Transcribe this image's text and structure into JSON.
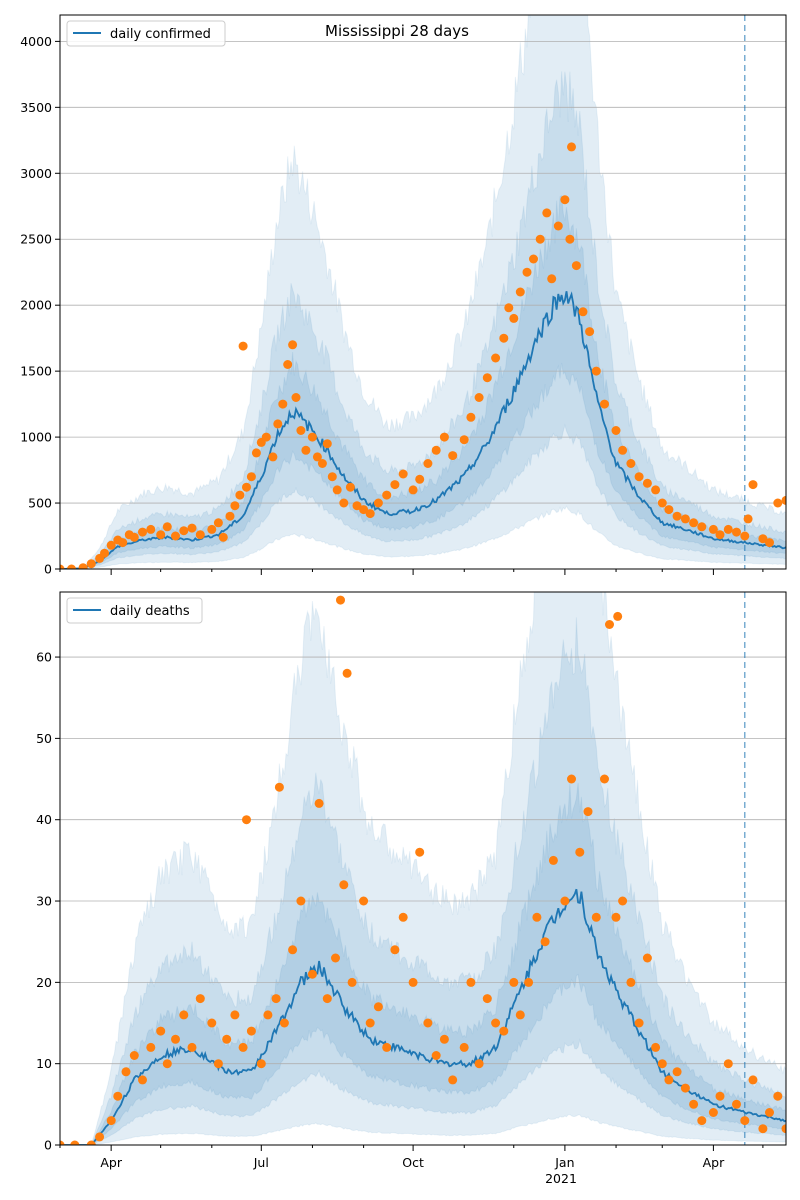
{
  "chart_data": [
    {
      "id": "confirmed",
      "type": "line",
      "title": "Mississippi 28 days",
      "legend": [
        "daily confirmed"
      ],
      "legend_position": "top-left",
      "grid_y": true,
      "x_range": [
        "2020-03-01",
        "2021-05-15"
      ],
      "x_ticks_major": [
        "Apr",
        "Jul",
        "Oct",
        "Jan",
        "Apr"
      ],
      "x_ticks_major_dates": [
        "2020-04-01",
        "2020-07-01",
        "2020-10-01",
        "2021-01-01",
        "2021-04-01"
      ],
      "x_year_label": "2021",
      "ylim": [
        0,
        4200
      ],
      "y_ticks": [
        0,
        500,
        1000,
        1500,
        2000,
        2500,
        3000,
        3500,
        4000
      ],
      "forecast_start": "2021-04-20",
      "median_knots": {
        "dates": [
          "2020-03-01",
          "2020-03-15",
          "2020-03-25",
          "2020-04-05",
          "2020-04-20",
          "2020-05-05",
          "2020-05-20",
          "2020-06-05",
          "2020-06-20",
          "2020-07-01",
          "2020-07-10",
          "2020-07-20",
          "2020-08-01",
          "2020-08-10",
          "2020-08-20",
          "2020-09-01",
          "2020-09-15",
          "2020-10-01",
          "2020-10-15",
          "2020-11-01",
          "2020-11-15",
          "2020-12-01",
          "2020-12-15",
          "2020-12-25",
          "2021-01-01",
          "2021-01-10",
          "2021-01-20",
          "2021-02-01",
          "2021-02-15",
          "2021-03-01",
          "2021-03-15",
          "2021-04-01",
          "2021-04-20",
          "2021-05-15"
        ],
        "values": [
          0,
          5,
          60,
          170,
          220,
          240,
          220,
          260,
          400,
          700,
          1000,
          1200,
          1050,
          900,
          700,
          520,
          420,
          440,
          520,
          700,
          950,
          1350,
          1750,
          2000,
          2100,
          1900,
          1300,
          800,
          550,
          350,
          300,
          230,
          200,
          160
        ]
      },
      "band_scale": {
        "inner_low": 0.72,
        "inner_high": 1.3,
        "mid_low": 0.5,
        "mid_high": 1.75,
        "outer_low": 0.22,
        "outer_high": 2.6
      },
      "observed": {
        "dates": [
          "2020-03-01",
          "2020-03-08",
          "2020-03-15",
          "2020-03-20",
          "2020-03-25",
          "2020-03-28",
          "2020-04-01",
          "2020-04-05",
          "2020-04-08",
          "2020-04-12",
          "2020-04-15",
          "2020-04-20",
          "2020-04-25",
          "2020-05-01",
          "2020-05-05",
          "2020-05-10",
          "2020-05-15",
          "2020-05-20",
          "2020-05-25",
          "2020-06-01",
          "2020-06-05",
          "2020-06-08",
          "2020-06-12",
          "2020-06-15",
          "2020-06-18",
          "2020-06-22",
          "2020-06-25",
          "2020-06-28",
          "2020-07-01",
          "2020-07-04",
          "2020-07-08",
          "2020-07-11",
          "2020-07-14",
          "2020-07-17",
          "2020-07-20",
          "2020-07-22",
          "2020-07-25",
          "2020-07-28",
          "2020-08-01",
          "2020-08-04",
          "2020-08-07",
          "2020-08-10",
          "2020-08-13",
          "2020-08-16",
          "2020-08-20",
          "2020-08-24",
          "2020-08-28",
          "2020-09-01",
          "2020-09-05",
          "2020-09-10",
          "2020-09-15",
          "2020-09-20",
          "2020-09-25",
          "2020-10-01",
          "2020-10-05",
          "2020-10-10",
          "2020-10-15",
          "2020-10-20",
          "2020-10-25",
          "2020-11-01",
          "2020-11-05",
          "2020-11-10",
          "2020-11-15",
          "2020-11-20",
          "2020-11-25",
          "2020-12-01",
          "2020-12-05",
          "2020-12-09",
          "2020-12-13",
          "2020-12-17",
          "2020-12-21",
          "2020-12-24",
          "2020-12-28",
          "2021-01-01",
          "2021-01-04",
          "2021-01-08",
          "2021-01-12",
          "2021-01-16",
          "2021-01-20",
          "2021-01-25",
          "2021-02-01",
          "2021-02-05",
          "2021-02-10",
          "2021-02-15",
          "2021-02-20",
          "2021-02-25",
          "2021-03-01",
          "2021-03-05",
          "2021-03-10",
          "2021-03-15",
          "2021-03-20",
          "2021-03-25",
          "2021-04-01",
          "2021-04-05",
          "2021-04-10",
          "2021-04-15",
          "2021-04-20",
          "2021-04-25",
          "2021-05-01",
          "2021-05-05",
          "2021-05-10",
          "2021-05-15",
          "2020-06-20",
          "2020-11-28",
          "2021-01-05",
          "2021-04-22"
        ],
        "values": [
          0,
          0,
          10,
          40,
          80,
          120,
          180,
          220,
          200,
          260,
          240,
          280,
          300,
          260,
          320,
          250,
          290,
          310,
          260,
          300,
          350,
          240,
          400,
          480,
          560,
          620,
          700,
          880,
          960,
          1000,
          850,
          1100,
          1250,
          1550,
          1700,
          1300,
          1050,
          900,
          1000,
          850,
          800,
          950,
          700,
          600,
          500,
          620,
          480,
          450,
          420,
          500,
          560,
          640,
          720,
          600,
          680,
          800,
          900,
          1000,
          860,
          980,
          1150,
          1300,
          1450,
          1600,
          1750,
          1900,
          2100,
          2250,
          2350,
          2500,
          2700,
          2200,
          2600,
          2800,
          2500,
          2300,
          1950,
          1800,
          1500,
          1250,
          1050,
          900,
          800,
          700,
          650,
          600,
          500,
          450,
          400,
          380,
          350,
          320,
          300,
          260,
          300,
          280,
          250,
          640,
          230,
          200,
          500,
          520,
          1690,
          1980,
          3200,
          380
        ]
      }
    },
    {
      "id": "deaths",
      "type": "line",
      "legend": [
        "daily deaths"
      ],
      "legend_position": "top-left",
      "grid_y": true,
      "x_range": [
        "2020-03-01",
        "2021-05-15"
      ],
      "x_ticks_major": [
        "Apr",
        "Jul",
        "Oct",
        "Jan",
        "Apr"
      ],
      "x_ticks_major_dates": [
        "2020-04-01",
        "2020-07-01",
        "2020-10-01",
        "2021-01-01",
        "2021-04-01"
      ],
      "x_year_label": "2021",
      "ylim": [
        0,
        68
      ],
      "y_ticks": [
        0,
        10,
        20,
        30,
        40,
        50,
        60
      ],
      "forecast_start": "2021-04-20",
      "median_knots": {
        "dates": [
          "2020-03-01",
          "2020-03-20",
          "2020-04-01",
          "2020-04-15",
          "2020-05-01",
          "2020-05-20",
          "2020-06-10",
          "2020-06-25",
          "2020-07-10",
          "2020-07-25",
          "2020-08-05",
          "2020-08-20",
          "2020-09-05",
          "2020-09-20",
          "2020-10-05",
          "2020-10-20",
          "2020-11-05",
          "2020-11-20",
          "2020-12-05",
          "2020-12-20",
          "2021-01-01",
          "2021-01-10",
          "2021-01-20",
          "2021-02-01",
          "2021-02-15",
          "2021-03-01",
          "2021-03-15",
          "2021-04-01",
          "2021-04-20",
          "2021-05-15"
        ],
        "values": [
          0,
          0,
          3,
          8,
          11,
          12,
          9,
          9,
          14,
          20,
          22,
          17,
          13,
          12,
          11,
          10,
          10,
          12,
          19,
          26,
          30,
          31,
          24,
          19,
          14,
          9,
          7,
          5,
          4,
          3
        ]
      },
      "band_scale": {
        "inner_low": 0.65,
        "inner_high": 1.4,
        "mid_low": 0.4,
        "mid_high": 2.0,
        "outer_low": 0.12,
        "outer_high": 3.0
      },
      "observed": {
        "dates": [
          "2020-03-01",
          "2020-03-10",
          "2020-03-20",
          "2020-03-25",
          "2020-04-01",
          "2020-04-05",
          "2020-04-10",
          "2020-04-15",
          "2020-04-20",
          "2020-04-25",
          "2020-05-01",
          "2020-05-05",
          "2020-05-10",
          "2020-05-15",
          "2020-05-20",
          "2020-05-25",
          "2020-06-01",
          "2020-06-05",
          "2020-06-10",
          "2020-06-15",
          "2020-06-20",
          "2020-06-25",
          "2020-07-01",
          "2020-07-05",
          "2020-07-10",
          "2020-07-15",
          "2020-07-20",
          "2020-07-25",
          "2020-08-01",
          "2020-08-05",
          "2020-08-10",
          "2020-08-15",
          "2020-08-20",
          "2020-08-25",
          "2020-09-01",
          "2020-09-05",
          "2020-09-10",
          "2020-09-15",
          "2020-09-20",
          "2020-09-25",
          "2020-10-01",
          "2020-10-05",
          "2020-10-10",
          "2020-10-15",
          "2020-10-20",
          "2020-10-25",
          "2020-11-01",
          "2020-11-05",
          "2020-11-10",
          "2020-11-15",
          "2020-11-20",
          "2020-11-25",
          "2020-12-01",
          "2020-12-05",
          "2020-12-10",
          "2020-12-15",
          "2020-12-20",
          "2020-12-25",
          "2021-01-01",
          "2021-01-05",
          "2021-01-10",
          "2021-01-15",
          "2021-01-20",
          "2021-01-25",
          "2021-02-01",
          "2021-02-05",
          "2021-02-10",
          "2021-02-15",
          "2021-02-20",
          "2021-02-25",
          "2021-03-01",
          "2021-03-05",
          "2021-03-10",
          "2021-03-15",
          "2021-03-20",
          "2021-03-25",
          "2021-04-01",
          "2021-04-05",
          "2021-04-10",
          "2021-04-15",
          "2021-04-20",
          "2021-04-25",
          "2021-05-01",
          "2021-05-05",
          "2021-05-10",
          "2021-05-15",
          "2020-08-18",
          "2020-08-22",
          "2021-01-28",
          "2021-02-02",
          "2020-06-22",
          "2020-07-12"
        ],
        "values": [
          0,
          0,
          0,
          1,
          3,
          6,
          9,
          11,
          8,
          12,
          14,
          10,
          13,
          16,
          12,
          18,
          15,
          10,
          13,
          16,
          12,
          14,
          10,
          16,
          18,
          15,
          24,
          30,
          21,
          42,
          18,
          23,
          32,
          20,
          30,
          15,
          17,
          12,
          24,
          28,
          20,
          36,
          15,
          11,
          13,
          8,
          12,
          20,
          10,
          18,
          15,
          14,
          20,
          16,
          20,
          28,
          25,
          35,
          30,
          45,
          36,
          41,
          28,
          45,
          28,
          30,
          20,
          15,
          23,
          12,
          10,
          8,
          9,
          7,
          5,
          3,
          4,
          6,
          10,
          5,
          3,
          8,
          2,
          4,
          6,
          2,
          67,
          58,
          64,
          65,
          40,
          44
        ]
      }
    }
  ]
}
